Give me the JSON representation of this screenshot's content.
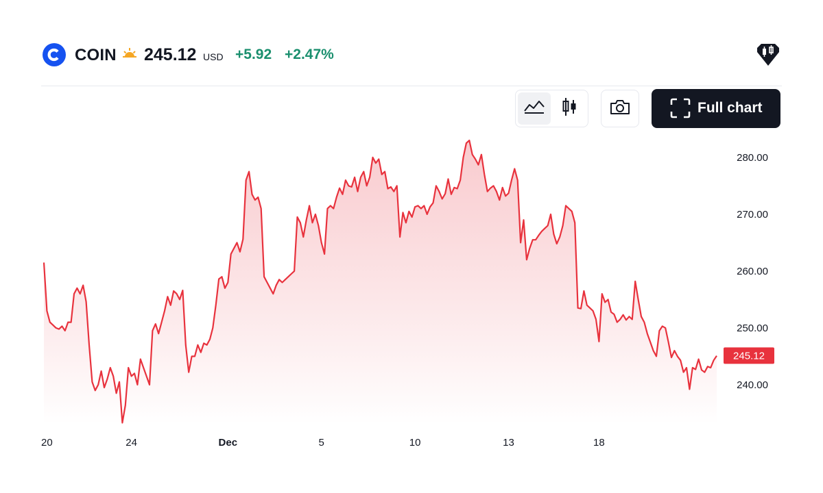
{
  "header": {
    "ticker": "COIN",
    "price": "245.12",
    "currency": "USD",
    "change": "+5.92",
    "change_pct": "+2.47%",
    "session_icon": "sun-icon",
    "logo_icon": "coinbase-logo-icon",
    "brand_icon": "tradingview-icon"
  },
  "toolbar": {
    "area_chart_icon": "area-chart-icon",
    "candles_icon": "candlestick-icon",
    "snapshot_icon": "camera-icon",
    "fullchart_icon": "fullscreen-icon",
    "fullchart_label": "Full chart",
    "active_style": "area"
  },
  "colors": {
    "line": "#e8323d",
    "fill_top": "#f8c5c9",
    "fill_bottom": "#ffffff",
    "positive": "#1a8f6e",
    "last_price_bg": "#e8323d"
  },
  "chart_data": {
    "type": "area",
    "title": "",
    "xlabel": "",
    "ylabel": "",
    "ylim": [
      233,
      283.6
    ],
    "y_ticks": [
      "280.00",
      "270.00",
      "260.00",
      "250.00",
      "240.00"
    ],
    "x_ticks": [
      "20",
      "24",
      "Dec",
      "5",
      "10",
      "13",
      "18"
    ],
    "last_value": "245.12",
    "grid": false,
    "series": [
      {
        "values": [
          261.5,
          253,
          251,
          250.5,
          250,
          249.8,
          250.3,
          249.5,
          251,
          251,
          256,
          257,
          256,
          257.5,
          254.6,
          247,
          240.5,
          239,
          240,
          242.4,
          239.5,
          241,
          243,
          241.5,
          238.5,
          240.5,
          233.3,
          236.4,
          243,
          241.5,
          242,
          240,
          244.5,
          243,
          241.5,
          240,
          249.5,
          250.7,
          249,
          251,
          253,
          255.5,
          254,
          256.5,
          256,
          255,
          256.6,
          247,
          242.2,
          245,
          245,
          247,
          245.7,
          247.3,
          247,
          248,
          250,
          254,
          258.6,
          259,
          257,
          258,
          263,
          264,
          265,
          263.4,
          265.6,
          276,
          277.5,
          273.5,
          272.5,
          273,
          271,
          259,
          258,
          257,
          256,
          257.5,
          258.5,
          258,
          258.5,
          259,
          259.5,
          260,
          269.5,
          268.5,
          266,
          269,
          271.5,
          268.5,
          270,
          268,
          265,
          263,
          271,
          271.5,
          271,
          273,
          274.6,
          273.5,
          276,
          275,
          274.8,
          276.5,
          274,
          276.5,
          277.5,
          275,
          276.5,
          280,
          279,
          279.7,
          277,
          277.5,
          274.5,
          274.8,
          274,
          275,
          266,
          270.3,
          268.5,
          270.5,
          269.5,
          271.3,
          271.5,
          271,
          271.5,
          270,
          271.3,
          272,
          275,
          274,
          272.7,
          273.6,
          276.2,
          273.5,
          274.7,
          274.5,
          276,
          280,
          282.5,
          283,
          280.5,
          279.7,
          278.7,
          280.5,
          277,
          274,
          274.6,
          275,
          274,
          272.5,
          274.7,
          273.2,
          273.7,
          276,
          278,
          276,
          265,
          269,
          262,
          264,
          265.5,
          265.5,
          266.3,
          267,
          267.5,
          268,
          270,
          266.5,
          264.8,
          266,
          268,
          271.5,
          271,
          270.5,
          268.5,
          253.5,
          253.4,
          256.5,
          254,
          253.5,
          253,
          251.5,
          247.6,
          256,
          254.5,
          255,
          252.8,
          252.4,
          251,
          251.5,
          252.3,
          251.4,
          252,
          251.5,
          258.2,
          255,
          252,
          251,
          249,
          247.5,
          246,
          245,
          249.5,
          250.3,
          250,
          247.5,
          244.8,
          246,
          245,
          244.3,
          242.2,
          243,
          239.2,
          243,
          242.7,
          244.5,
          242.6,
          242.2,
          243.2,
          243,
          244.3,
          245.1
        ]
      }
    ]
  }
}
